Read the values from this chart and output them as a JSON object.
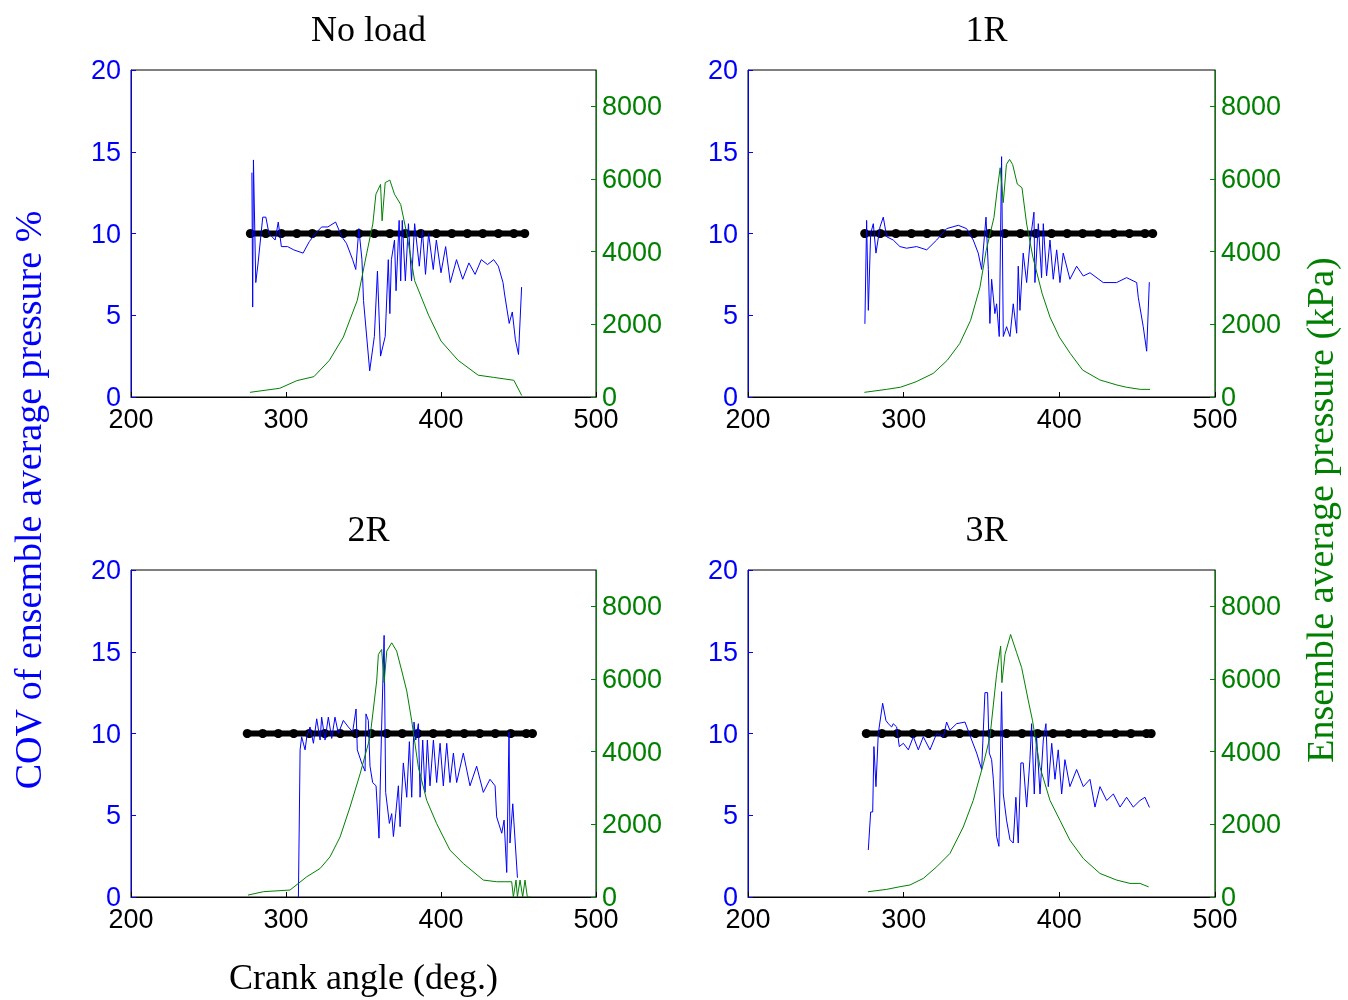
{
  "chart_data": [
    {
      "type": "line",
      "title": "No load",
      "ylabel": "COV of ensemble average pressure %",
      "xlim": [
        200,
        500
      ],
      "xticks": [
        200,
        300,
        400,
        500
      ],
      "ylim": [
        0,
        20
      ],
      "yticks": [
        0,
        5,
        10,
        15,
        20
      ],
      "y2lim": [
        0,
        9000
      ],
      "y2ticks": [
        0,
        2000,
        4000,
        6000,
        8000
      ],
      "series": [
        {
          "color": "#0000ff",
          "x": [
            278,
            278.5,
            279,
            280.5,
            282,
            285,
            287,
            289,
            293,
            295,
            297,
            301,
            305,
            311,
            315,
            319,
            323,
            327,
            332,
            336,
            339,
            343,
            345,
            347,
            349,
            350,
            354,
            357,
            359,
            361,
            364,
            366,
            367,
            368,
            370,
            371,
            373,
            374,
            375,
            377,
            379,
            381,
            383,
            386,
            388,
            390,
            392,
            395,
            397,
            400,
            403,
            406,
            410,
            414,
            418,
            422,
            426,
            430,
            434,
            437,
            440,
            441,
            444,
            446,
            448,
            450,
            452
          ],
          "values": [
            13.7,
            5.5,
            14.5,
            7,
            8.2,
            11,
            11,
            10,
            9.6,
            10.7,
            9.2,
            9.2,
            9,
            8.8,
            9.5,
            10,
            10.4,
            10.4,
            10.7,
            9.8,
            9.4,
            8.4,
            7.8,
            10.3,
            8.4,
            5.9,
            1.6,
            3.7,
            7.7,
            2.5,
            3.7,
            8.4,
            5.1,
            8.4,
            9.6,
            6.5,
            10.8,
            7.1,
            10.8,
            7.1,
            10.6,
            7.1,
            10.6,
            8,
            10.2,
            7.5,
            10,
            7.8,
            9.6,
            7.6,
            9.2,
            7,
            8.4,
            7.2,
            8.2,
            7.5,
            8.4,
            8.1,
            8.4,
            8,
            7,
            6.3,
            4.5,
            5.2,
            3.5,
            2.6,
            6.7
          ]
        },
        {
          "color": "#008000",
          "axis": "y2",
          "x": [
            277,
            296,
            307,
            318,
            328,
            337,
            346,
            352,
            356,
            358,
            361,
            362,
            364,
            367,
            370,
            374,
            378,
            383,
            392,
            400,
            411,
            424,
            434,
            447,
            452
          ],
          "values": [
            130,
            240,
            450,
            560,
            1010,
            1650,
            2660,
            3940,
            4760,
            5580,
            5850,
            4850,
            5900,
            5970,
            5580,
            5300,
            4480,
            3200,
            2250,
            1540,
            1010,
            600,
            540,
            460,
            50
          ]
        },
        {
          "color": "#000000",
          "marker": "circle",
          "x": [
            277,
            287,
            297,
            307,
            317,
            327,
            337,
            347,
            357,
            367,
            377,
            387,
            397,
            407,
            417,
            427,
            437,
            447,
            454
          ],
          "values": [
            10,
            10,
            10,
            10,
            10,
            10,
            10,
            10,
            10,
            10,
            10,
            10,
            10,
            10,
            10,
            10,
            10,
            10,
            10
          ]
        }
      ]
    },
    {
      "type": "line",
      "title": "1R",
      "y2label": "Ensemble average pressure (kPa)",
      "xlim": [
        200,
        500
      ],
      "xticks": [
        200,
        300,
        400,
        500
      ],
      "ylim": [
        0,
        20
      ],
      "yticks": [
        0,
        5,
        10,
        15,
        20
      ],
      "y2lim": [
        0,
        9000
      ],
      "y2ticks": [
        0,
        2000,
        4000,
        6000,
        8000
      ],
      "series": [
        {
          "color": "#0000ff",
          "x": [
            275.1,
            276.2,
            277.3,
            278.8,
            280.5,
            282.2,
            284.8,
            286.9,
            289.1,
            293.3,
            297.6,
            301.9,
            308.3,
            314.8,
            321.2,
            327.6,
            335.1,
            340.4,
            344.7,
            347.9,
            350.1,
            352.9,
            354.4,
            355.4,
            356.5,
            358.6,
            359.7,
            361.4,
            362.9,
            364,
            366.1,
            368.3,
            370.4,
            372.6,
            373.6,
            374.7,
            376.8,
            379,
            381.1,
            383.7,
            384.3,
            386.5,
            388.6,
            389.7,
            391.8,
            394,
            396.1,
            398.3,
            400.4,
            402.5,
            406.8,
            411.1,
            415.4,
            419.7,
            428.2,
            436.8,
            443.2,
            449.7,
            450.7,
            453.9,
            456.1,
            457.8
          ],
          "values": [
            4.5,
            10.8,
            5.3,
            10,
            10.6,
            8.8,
            10.4,
            11,
            9.8,
            9.6,
            9.2,
            9.1,
            9.2,
            9,
            9.6,
            10.3,
            10.5,
            10.3,
            9.6,
            8.8,
            7.8,
            11,
            7.8,
            4.5,
            7.2,
            5.1,
            5.7,
            3.7,
            14.7,
            3.7,
            4.3,
            3.7,
            5.7,
            3.9,
            8,
            5.3,
            8.8,
            7,
            9.4,
            11.3,
            7,
            10.6,
            7.3,
            10.6,
            7.4,
            9.6,
            7.2,
            9,
            7,
            8.8,
            7.2,
            8,
            7.4,
            7.6,
            7,
            7,
            7.3,
            7,
            6.1,
            4.3,
            2.8,
            7
          ]
        },
        {
          "color": "#008000",
          "axis": "y2",
          "x": [
            275,
            289,
            298,
            308,
            319,
            328,
            336,
            343,
            349,
            353,
            358,
            360,
            362,
            364,
            366,
            368,
            370,
            373,
            376,
            379,
            383,
            389,
            394,
            400,
            407,
            415,
            426,
            437,
            443,
            452,
            458
          ],
          "values": [
            130,
            210,
            270,
            420,
            650,
            1010,
            1470,
            2110,
            3020,
            4030,
            4940,
            5670,
            6310,
            5350,
            6400,
            6540,
            6400,
            5860,
            5760,
            4760,
            3850,
            2840,
            2200,
            1650,
            1200,
            740,
            470,
            330,
            270,
            210,
            210
          ]
        },
        {
          "color": "#000000",
          "marker": "circle",
          "x": [
            275,
            285,
            295,
            305,
            315,
            325,
            335,
            345,
            355,
            365,
            375,
            385,
            395,
            405,
            415,
            425,
            435,
            445,
            455,
            460
          ],
          "values": [
            10,
            10,
            10,
            10,
            10,
            10,
            10,
            10,
            10,
            10,
            10,
            10,
            10,
            10,
            10,
            10,
            10,
            10,
            10,
            10
          ]
        }
      ]
    },
    {
      "type": "line",
      "title": "2R",
      "xlabel": "Crank angle (deg.)",
      "xlim": [
        200,
        500
      ],
      "xticks": [
        200,
        300,
        400,
        500
      ],
      "ylim": [
        0,
        20
      ],
      "yticks": [
        0,
        5,
        10,
        15,
        20
      ],
      "y2lim": [
        0,
        9000
      ],
      "y2ticks": [
        0,
        2000,
        4000,
        6000,
        8000
      ],
      "series": [
        {
          "color": "#0000ff",
          "x": [
            308,
            309.1,
            310.1,
            312.3,
            313.4,
            315.5,
            317.7,
            319.8,
            322,
            323,
            325.2,
            327.3,
            329.5,
            331.6,
            333.8,
            337,
            340.2,
            343,
            345.2,
            346,
            348.8,
            351,
            351.6,
            353.1,
            354.2,
            355.9,
            358.1,
            360,
            361.7,
            363.3,
            364.3,
            366.7,
            368.2,
            369.3,
            370.8,
            372.5,
            373.6,
            375.7,
            377.9,
            379.6,
            381.1,
            382.6,
            383.7,
            385.4,
            386.5,
            388.2,
            389.7,
            391.2,
            392.9,
            395.1,
            397.2,
            399.4,
            401.5,
            403.7,
            405.8,
            408,
            410.1,
            414.4,
            418.7,
            423,
            427.3,
            431.6,
            434.9,
            435.9,
            439.2,
            440.7,
            442.4,
            443.9,
            444.5,
            446.3,
            449.3
          ],
          "values": [
            0,
            9,
            9.8,
            9,
            9.8,
            10.4,
            9.4,
            10.9,
            9.6,
            11,
            9.6,
            11,
            9.7,
            11,
            10,
            10.8,
            10.4,
            10.1,
            11.5,
            9,
            8.2,
            7.7,
            11.2,
            10.8,
            8,
            7,
            6.8,
            3.6,
            10.4,
            16,
            6.4,
            4.5,
            5.1,
            3.7,
            5.1,
            6.8,
            4.3,
            8.2,
            6.1,
            9.5,
            6.1,
            10.7,
            9.6,
            10.6,
            6.1,
            9.6,
            6.4,
            9.6,
            6.8,
            9.6,
            7,
            9.4,
            6.8,
            9.4,
            7,
            8.8,
            7,
            8.8,
            6.8,
            8,
            6.4,
            7.2,
            6.8,
            4.9,
            3.9,
            4.7,
            1.5,
            10.1,
            3.3,
            5.7,
            1.2
          ]
        },
        {
          "color": "#008000",
          "axis": "y2",
          "x": [
            275.7,
            285.4,
            302.6,
            308,
            313.4,
            322,
            328.4,
            334.9,
            341.3,
            347.8,
            354.2,
            358.5,
            359.6,
            361.7,
            363.3,
            365,
            368.2,
            371.4,
            374.7,
            377.9,
            381.1,
            385.4,
            390.8,
            397.2,
            405.8,
            414.4,
            427.3,
            435.9,
            445.6,
            446.7,
            448.4,
            449.3,
            451,
            452.7,
            454.2,
            455.7,
            457.4
          ],
          "values": [
            55,
            146,
            192,
            374,
            557,
            785,
            1105,
            1653,
            2475,
            3388,
            4393,
            5946,
            6676,
            6813,
            5900,
            6768,
            6996,
            6768,
            6220,
            5672,
            4850,
            3571,
            2658,
            2018,
            1288,
            922,
            466,
            420,
            420,
            0,
            466,
            0,
            466,
            0,
            466,
            0,
            0
          ]
        },
        {
          "color": "#000000",
          "marker": "circle",
          "x": [
            275,
            285,
            295,
            305,
            315,
            325,
            335,
            345,
            355,
            365,
            375,
            385,
            395,
            405,
            415,
            425,
            435,
            445,
            455,
            459
          ],
          "values": [
            10,
            10,
            10,
            10,
            10,
            10,
            10,
            10,
            10,
            10,
            10,
            10,
            10,
            10,
            10,
            10,
            10,
            10,
            10,
            10
          ]
        }
      ]
    },
    {
      "type": "line",
      "title": "3R",
      "xlim": [
        200,
        500
      ],
      "xticks": [
        200,
        300,
        400,
        500
      ],
      "ylim": [
        0,
        20
      ],
      "yticks": [
        0,
        5,
        10,
        15,
        20
      ],
      "y2lim": [
        0,
        9000
      ],
      "y2ticks": [
        0,
        2000,
        4000,
        6000,
        8000
      ],
      "series": [
        {
          "color": "#0000ff",
          "x": [
            277.3,
            278.8,
            280.1,
            280.9,
            282.2,
            283.7,
            286.5,
            288.6,
            290.1,
            292.3,
            293.3,
            295.5,
            297.2,
            299.8,
            303,
            306.2,
            309.4,
            312.6,
            316.9,
            321.2,
            325.5,
            327.6,
            329.7,
            334,
            339.4,
            343.7,
            346.9,
            350.1,
            352.2,
            353.9,
            355,
            356.5,
            357.6,
            359.7,
            361.2,
            362.9,
            364,
            366.1,
            368.3,
            370.4,
            372.1,
            373.6,
            375.3,
            376.8,
            379,
            381.1,
            382.2,
            383.9,
            385.4,
            387.6,
            389.7,
            391.4,
            392.9,
            395.1,
            397.2,
            399.3,
            401.5,
            403.6,
            406.8,
            411.1,
            415.4,
            419.7,
            422.9,
            426.1,
            430.4,
            434.7,
            439,
            443.2,
            447.5,
            451.8,
            455,
            457.8
          ],
          "values": [
            2.9,
            5.2,
            5.2,
            9.2,
            6.75,
            10,
            11.85,
            10.8,
            10.6,
            10.4,
            10.6,
            10.4,
            9.2,
            9.4,
            9,
            9.8,
            9,
            9.8,
            9,
            10,
            9.8,
            10.7,
            10.2,
            10.6,
            10.7,
            9.6,
            8.8,
            7.8,
            12.5,
            12.5,
            8.8,
            8.4,
            7.2,
            3.7,
            3.1,
            12.56,
            6.3,
            4.7,
            3.5,
            3.3,
            6.1,
            3.3,
            8.2,
            8.2,
            5.5,
            8.4,
            10.6,
            6.3,
            9.8,
            6.3,
            9.6,
            10.6,
            6.75,
            9.4,
            7.2,
            9,
            6.3,
            8.4,
            6.75,
            7.8,
            6.75,
            7.2,
            5.5,
            6.75,
            5.9,
            6.3,
            5.5,
            6.1,
            5.5,
            5.9,
            6.1,
            5.5
          ]
        },
        {
          "color": "#008000",
          "axis": "y2",
          "x": [
            277.3,
            289.1,
            297.6,
            304,
            312.6,
            321.2,
            329.7,
            338.3,
            344.7,
            351.2,
            355.4,
            359.7,
            362.3,
            363.1,
            365.1,
            368.7,
            372.6,
            375.8,
            380.1,
            382.8,
            387.6,
            394,
            400.4,
            406.8,
            415.4,
            426.1,
            436.8,
            445.4,
            451.8,
            457.1
          ],
          "values": [
            146,
            210,
            283,
            330,
            511,
            831,
            1196,
            1927,
            2658,
            3663,
            4393,
            6129,
            6904,
            5900,
            6676,
            7224,
            6722,
            6311,
            5398,
            4850,
            3571,
            2658,
            2110,
            1562,
            1059,
            648,
            466,
            374,
            374,
            283
          ]
        },
        {
          "color": "#000000",
          "marker": "circle",
          "x": [
            276,
            286,
            296,
            306,
            316,
            326,
            336,
            346,
            356,
            366,
            376,
            386,
            396,
            406,
            416,
            426,
            436,
            446,
            456,
            459
          ],
          "values": [
            10,
            10,
            10,
            10,
            10,
            10,
            10,
            10,
            10,
            10,
            10,
            10,
            10,
            10,
            10,
            10,
            10,
            10,
            10,
            10
          ]
        }
      ]
    }
  ]
}
